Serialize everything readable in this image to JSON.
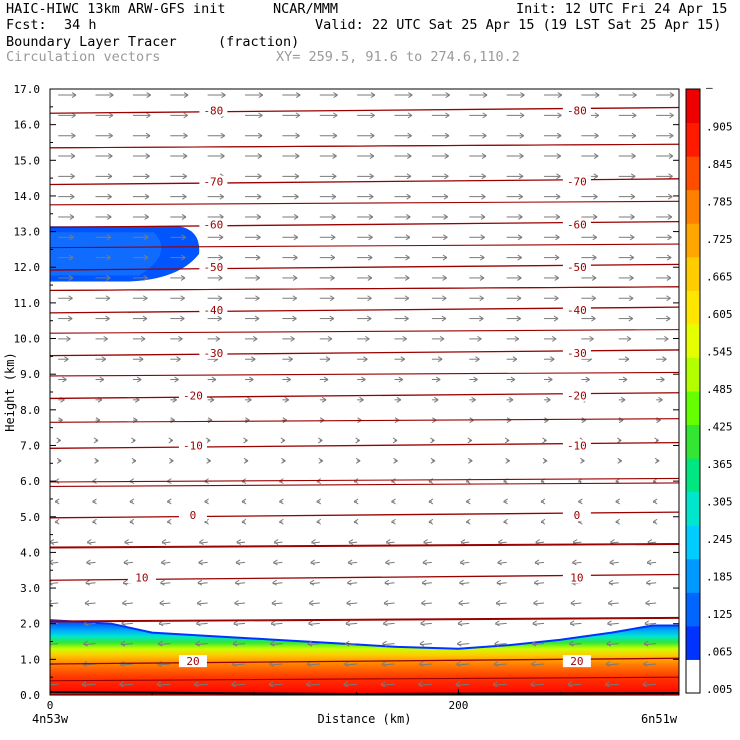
{
  "header": {
    "model": "HAIC-HIWC 13km ARW-GFS init",
    "org": "NCAR/MMM",
    "init": "Init: 12 UTC Fri 24 Apr 15",
    "fcst_label": "Fcst:",
    "fcst_value": "34 h",
    "valid": "Valid: 22 UTC Sat 25 Apr 15 (19 LST Sat 25 Apr 15)",
    "field_name": "Boundary Layer Tracer",
    "field_units": "(fraction)",
    "vectors_label": "Circulation vectors",
    "xy_label": "XY= 259.5, 91.6 to 274.6,110.2"
  },
  "chart_data": {
    "type": "heatmap",
    "ylabel": "Height (km)",
    "xlabel": "Distance (km)",
    "ylim": [
      0,
      17
    ],
    "xlim": [
      0,
      308
    ],
    "y_ticks": [
      "0.0",
      "1.0",
      "2.0",
      "3.0",
      "4.0",
      "5.0",
      "6.0",
      "7.0",
      "8.0",
      "9.0",
      "10.0",
      "11.0",
      "12.0",
      "13.0",
      "14.0",
      "15.0",
      "16.0",
      "17.0"
    ],
    "x_ticks": [
      {
        "value": 0,
        "label": "0"
      },
      {
        "value": 200,
        "label": "200"
      }
    ],
    "x_end_labels": {
      "left": "4n53w",
      "right": "6n51w"
    },
    "colorbar": {
      "labels": [
        "–",
        ".905",
        ".845",
        ".785",
        ".725",
        ".665",
        ".605",
        ".545",
        ".485",
        ".425",
        ".365",
        ".305",
        ".245",
        ".185",
        ".125",
        ".065",
        ".005"
      ],
      "colors": [
        "#ffffff",
        "#0033ff",
        "#0066ff",
        "#0099ff",
        "#00ccff",
        "#00e6cc",
        "#00e680",
        "#33e633",
        "#66ff00",
        "#b3ff00",
        "#e6ff00",
        "#ffe600",
        "#ffcc00",
        "#ffa600",
        "#ff7f00",
        "#ff4d00",
        "#ff1a00",
        "#ee0000"
      ]
    },
    "tracer_top_km": [
      {
        "x": 0,
        "y": 2.1
      },
      {
        "x": 30,
        "y": 2.0
      },
      {
        "x": 50,
        "y": 1.75
      },
      {
        "x": 80,
        "y": 1.65
      },
      {
        "x": 110,
        "y": 1.55
      },
      {
        "x": 140,
        "y": 1.45
      },
      {
        "x": 170,
        "y": 1.35
      },
      {
        "x": 200,
        "y": 1.3
      },
      {
        "x": 225,
        "y": 1.4
      },
      {
        "x": 250,
        "y": 1.55
      },
      {
        "x": 275,
        "y": 1.75
      },
      {
        "x": 295,
        "y": 1.95
      },
      {
        "x": 308,
        "y": 1.95
      }
    ],
    "upper_tracer_blob": {
      "x_end": 73,
      "y_low": 11.6,
      "y_high": 13.15
    },
    "temperature_contours": [
      {
        "label": "-80",
        "z": 16.4
      },
      {
        "label": "-70",
        "z": 14.4
      },
      {
        "label": "-60",
        "z": 13.2
      },
      {
        "label": "-50",
        "z": 12.0
      },
      {
        "label": "-40",
        "z": 10.8
      },
      {
        "label": "-30",
        "z": 9.6
      },
      {
        "label": "-20",
        "z": 8.4
      },
      {
        "label": "-10",
        "z": 7.0
      },
      {
        "label": "0",
        "z": 5.05
      },
      {
        "label": "10",
        "z": 3.3
      },
      {
        "label": "20",
        "z": 0.95
      }
    ],
    "temperature_label_positions_km": [
      {
        "label": "-80",
        "x": [
          80,
          258
        ]
      },
      {
        "label": "-70",
        "x": [
          80,
          258
        ]
      },
      {
        "label": "-60",
        "x": [
          80,
          258
        ]
      },
      {
        "label": "-50",
        "x": [
          80,
          258
        ]
      },
      {
        "label": "-40",
        "x": [
          80,
          258
        ]
      },
      {
        "label": "-30",
        "x": [
          80,
          258
        ]
      },
      {
        "label": "-20",
        "x": [
          70,
          258
        ]
      },
      {
        "label": "-10",
        "x": [
          70,
          258
        ]
      },
      {
        "label": "0",
        "x": [
          70,
          258
        ]
      },
      {
        "label": "10",
        "x": [
          45,
          258
        ]
      },
      {
        "label": "20",
        "x": [
          70,
          258
        ]
      }
    ]
  }
}
